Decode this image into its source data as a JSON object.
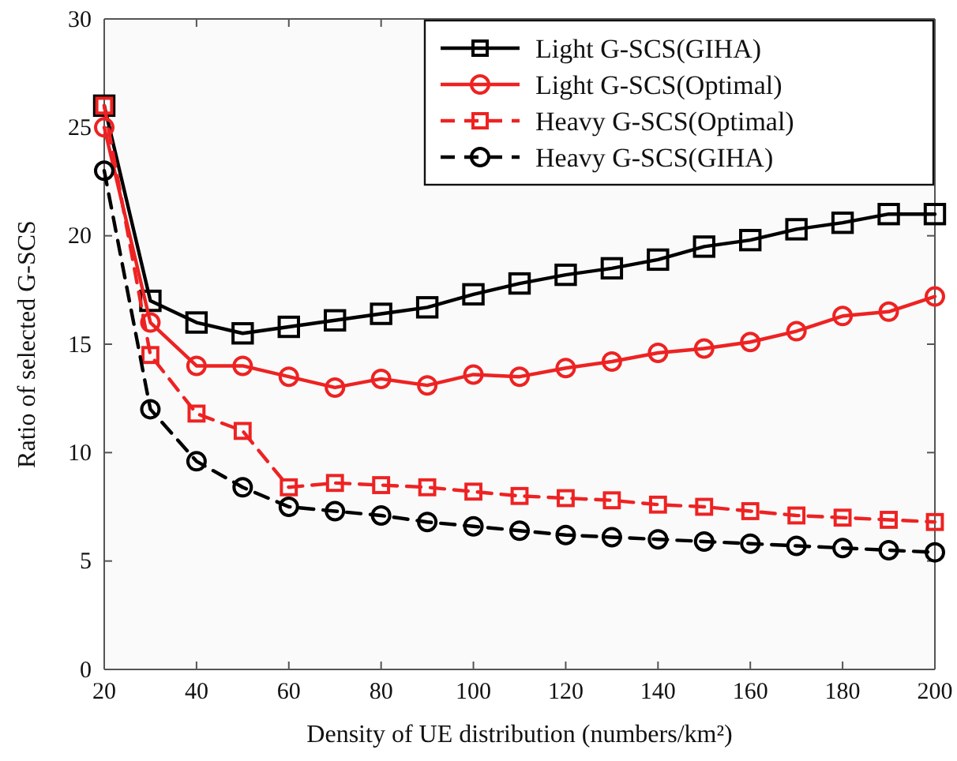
{
  "chart_data": {
    "type": "line",
    "xlabel": "Density of UE distribution (numbers/km²)",
    "ylabel": "Ratio of selected G-SCS",
    "x": [
      20,
      30,
      40,
      50,
      60,
      70,
      80,
      90,
      100,
      110,
      120,
      130,
      140,
      150,
      160,
      170,
      180,
      190,
      200
    ],
    "series": [
      {
        "name": "Light G-SCS(GIHA)",
        "color": "#000000",
        "marker": "square",
        "line_style": "solid",
        "values": [
          26,
          17,
          16,
          15.5,
          15.8,
          16.1,
          16.4,
          16.7,
          17.3,
          17.8,
          18.2,
          18.5,
          18.9,
          19.5,
          19.8,
          20.3,
          20.6,
          21,
          21
        ]
      },
      {
        "name": "Light G-SCS(Optimal)",
        "color": "#ee2222",
        "marker": "circle",
        "line_style": "solid",
        "values": [
          25,
          16,
          14,
          14,
          13.5,
          13,
          13.4,
          13.1,
          13.6,
          13.5,
          13.9,
          14.2,
          14.6,
          14.8,
          15.1,
          15.6,
          16.3,
          16.5,
          17.2
        ]
      },
      {
        "name": "Heavy G-SCS(Optimal)",
        "color": "#ee2222",
        "marker": "square",
        "line_style": "dashed",
        "values": [
          26,
          14.5,
          11.8,
          11,
          8.4,
          8.6,
          8.5,
          8.4,
          8.2,
          8,
          7.9,
          7.8,
          7.6,
          7.5,
          7.3,
          7.1,
          7,
          6.9,
          6.8
        ]
      },
      {
        "name": "Heavy G-SCS(GIHA)",
        "color": "#000000",
        "marker": "circle",
        "line_style": "dashed",
        "values": [
          23,
          12,
          9.6,
          8.4,
          7.5,
          7.3,
          7.1,
          6.8,
          6.6,
          6.4,
          6.2,
          6.1,
          6,
          5.9,
          5.8,
          5.7,
          5.6,
          5.5,
          5.4
        ]
      }
    ],
    "xlim": [
      20,
      200
    ],
    "xticks": [
      20,
      40,
      60,
      80,
      100,
      120,
      140,
      160,
      180,
      200
    ],
    "ylim": [
      0,
      30
    ],
    "yticks": [
      0,
      5,
      10,
      15,
      20,
      25,
      30
    ],
    "grid": false,
    "legend": "top right"
  }
}
